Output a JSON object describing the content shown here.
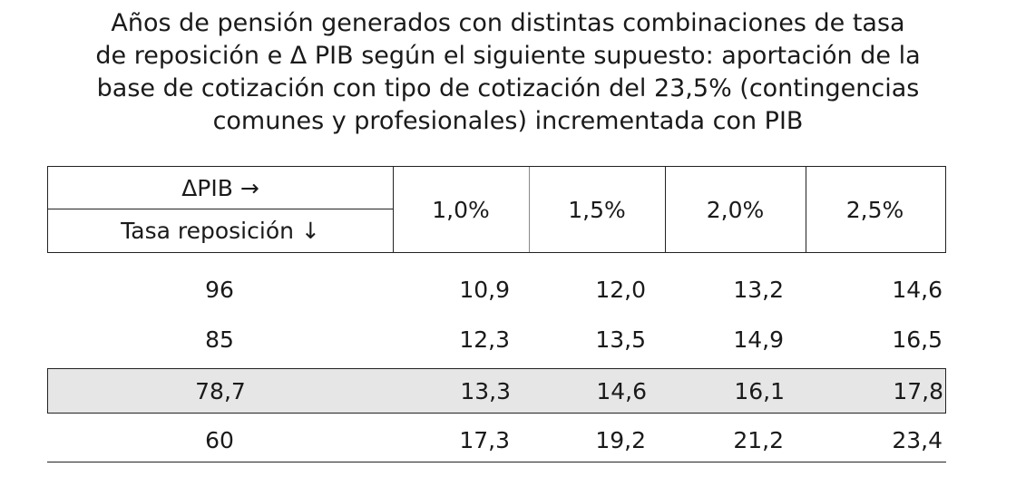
{
  "title": "Años de pensión generados con distintas combinaciones de tasa\nde reposición e Δ PIB según el siguiente supuesto: aportación de la\nbase de cotización con tipo de cotización del 23,5% (contingencias\ncomunes y profesionales) incrementada con PIB",
  "header": {
    "pib_label": "ΔPIB  →",
    "tasa_label": "Tasa reposición ↓",
    "columns": [
      "1,0%",
      "1,5%",
      "2,0%",
      "2,5%"
    ]
  },
  "rows": [
    {
      "tasa": "96",
      "values": [
        "10,9",
        "12,0",
        "13,2",
        "14,6"
      ]
    },
    {
      "tasa": "85",
      "values": [
        "12,3",
        "13,5",
        "14,9",
        "16,5"
      ]
    },
    {
      "tasa": "78,7",
      "values": [
        "13,3",
        "14,6",
        "16,1",
        "17,8"
      ],
      "highlighted": true
    },
    {
      "tasa": "60",
      "values": [
        "17,3",
        "19,2",
        "21,2",
        "23,4"
      ]
    }
  ]
}
